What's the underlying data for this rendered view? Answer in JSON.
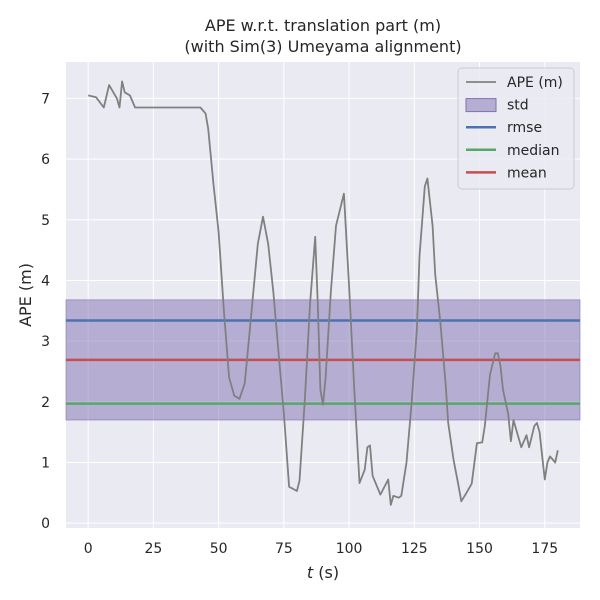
{
  "chart_data": {
    "type": "line",
    "title_line1": "APE w.r.t. translation part (m)",
    "title_line2": "(with Sim(3) Umeyama alignment)",
    "xlabel_var": "t",
    "xlabel_unit": " (s)",
    "ylabel": "APE (m)",
    "xlim": [
      -8.5,
      188.5
    ],
    "ylim": [
      -0.08,
      7.6
    ],
    "x_ticks": [
      0,
      25,
      50,
      75,
      100,
      125,
      150,
      175
    ],
    "y_ticks": [
      0,
      1,
      2,
      3,
      4,
      5,
      6,
      7
    ],
    "grid": true,
    "legend_position": "upper right",
    "background": "#eaeaf2",
    "series": [
      {
        "name": "APE (m)",
        "color": "#808080",
        "points": [
          [
            0,
            7.05
          ],
          [
            3,
            7.02
          ],
          [
            6,
            6.85
          ],
          [
            8,
            7.22
          ],
          [
            11,
            7.0
          ],
          [
            12,
            6.85
          ],
          [
            13,
            7.28
          ],
          [
            14,
            7.1
          ],
          [
            16,
            7.05
          ],
          [
            18,
            6.85
          ],
          [
            25,
            6.85
          ],
          [
            35,
            6.85
          ],
          [
            43,
            6.85
          ],
          [
            45,
            6.75
          ],
          [
            46,
            6.5
          ],
          [
            48,
            5.6
          ],
          [
            50,
            4.8
          ],
          [
            52,
            3.5
          ],
          [
            54,
            2.4
          ],
          [
            56,
            2.1
          ],
          [
            58,
            2.05
          ],
          [
            60,
            2.3
          ],
          [
            62,
            3.2
          ],
          [
            65,
            4.6
          ],
          [
            67,
            5.05
          ],
          [
            69,
            4.6
          ],
          [
            71,
            3.8
          ],
          [
            73,
            2.8
          ],
          [
            75,
            1.8
          ],
          [
            77,
            0.6
          ],
          [
            80,
            0.53
          ],
          [
            81,
            0.7
          ],
          [
            83,
            2.0
          ],
          [
            85,
            3.6
          ],
          [
            87,
            4.72
          ],
          [
            88,
            3.6
          ],
          [
            89,
            2.2
          ],
          [
            90,
            1.95
          ],
          [
            91,
            2.4
          ],
          [
            93,
            3.8
          ],
          [
            95,
            4.9
          ],
          [
            98,
            5.43
          ],
          [
            100,
            3.9
          ],
          [
            102,
            2.2
          ],
          [
            104,
            0.66
          ],
          [
            106,
            0.88
          ],
          [
            107,
            1.25
          ],
          [
            108,
            1.28
          ],
          [
            109,
            0.78
          ],
          [
            112,
            0.47
          ],
          [
            115,
            0.72
          ],
          [
            116,
            0.3
          ],
          [
            117,
            0.45
          ],
          [
            119,
            0.42
          ],
          [
            120,
            0.45
          ],
          [
            122,
            1.0
          ],
          [
            124,
            2.0
          ],
          [
            126,
            3.2
          ],
          [
            127,
            4.4
          ],
          [
            129,
            5.55
          ],
          [
            130,
            5.68
          ],
          [
            132,
            4.9
          ],
          [
            133,
            4.1
          ],
          [
            135,
            3.3
          ],
          [
            137,
            2.3
          ],
          [
            138,
            1.65
          ],
          [
            140,
            1.05
          ],
          [
            142,
            0.6
          ],
          [
            143,
            0.36
          ],
          [
            145,
            0.5
          ],
          [
            147,
            0.65
          ],
          [
            149,
            1.32
          ],
          [
            151,
            1.33
          ],
          [
            152,
            1.6
          ],
          [
            154,
            2.45
          ],
          [
            156,
            2.8
          ],
          [
            157,
            2.8
          ],
          [
            158,
            2.6
          ],
          [
            159,
            2.2
          ],
          [
            161,
            1.8
          ],
          [
            162,
            1.35
          ],
          [
            163,
            1.7
          ],
          [
            165,
            1.4
          ],
          [
            166,
            1.25
          ],
          [
            168,
            1.45
          ],
          [
            169,
            1.25
          ],
          [
            171,
            1.6
          ],
          [
            172,
            1.65
          ],
          [
            173,
            1.5
          ],
          [
            174,
            1.1
          ],
          [
            175,
            0.72
          ],
          [
            176,
            1.0
          ],
          [
            177,
            1.1
          ],
          [
            178,
            1.05
          ],
          [
            179,
            1.0
          ],
          [
            180,
            1.2
          ]
        ]
      },
      {
        "name": "rmse",
        "color": "#4c72b0",
        "value": 3.34
      },
      {
        "name": "median",
        "color": "#55a868",
        "value": 1.97
      },
      {
        "name": "mean",
        "color": "#c44e52",
        "value": 2.69
      },
      {
        "name": "std",
        "color": "#8172b2",
        "range": [
          1.7,
          3.68
        ]
      }
    ]
  }
}
